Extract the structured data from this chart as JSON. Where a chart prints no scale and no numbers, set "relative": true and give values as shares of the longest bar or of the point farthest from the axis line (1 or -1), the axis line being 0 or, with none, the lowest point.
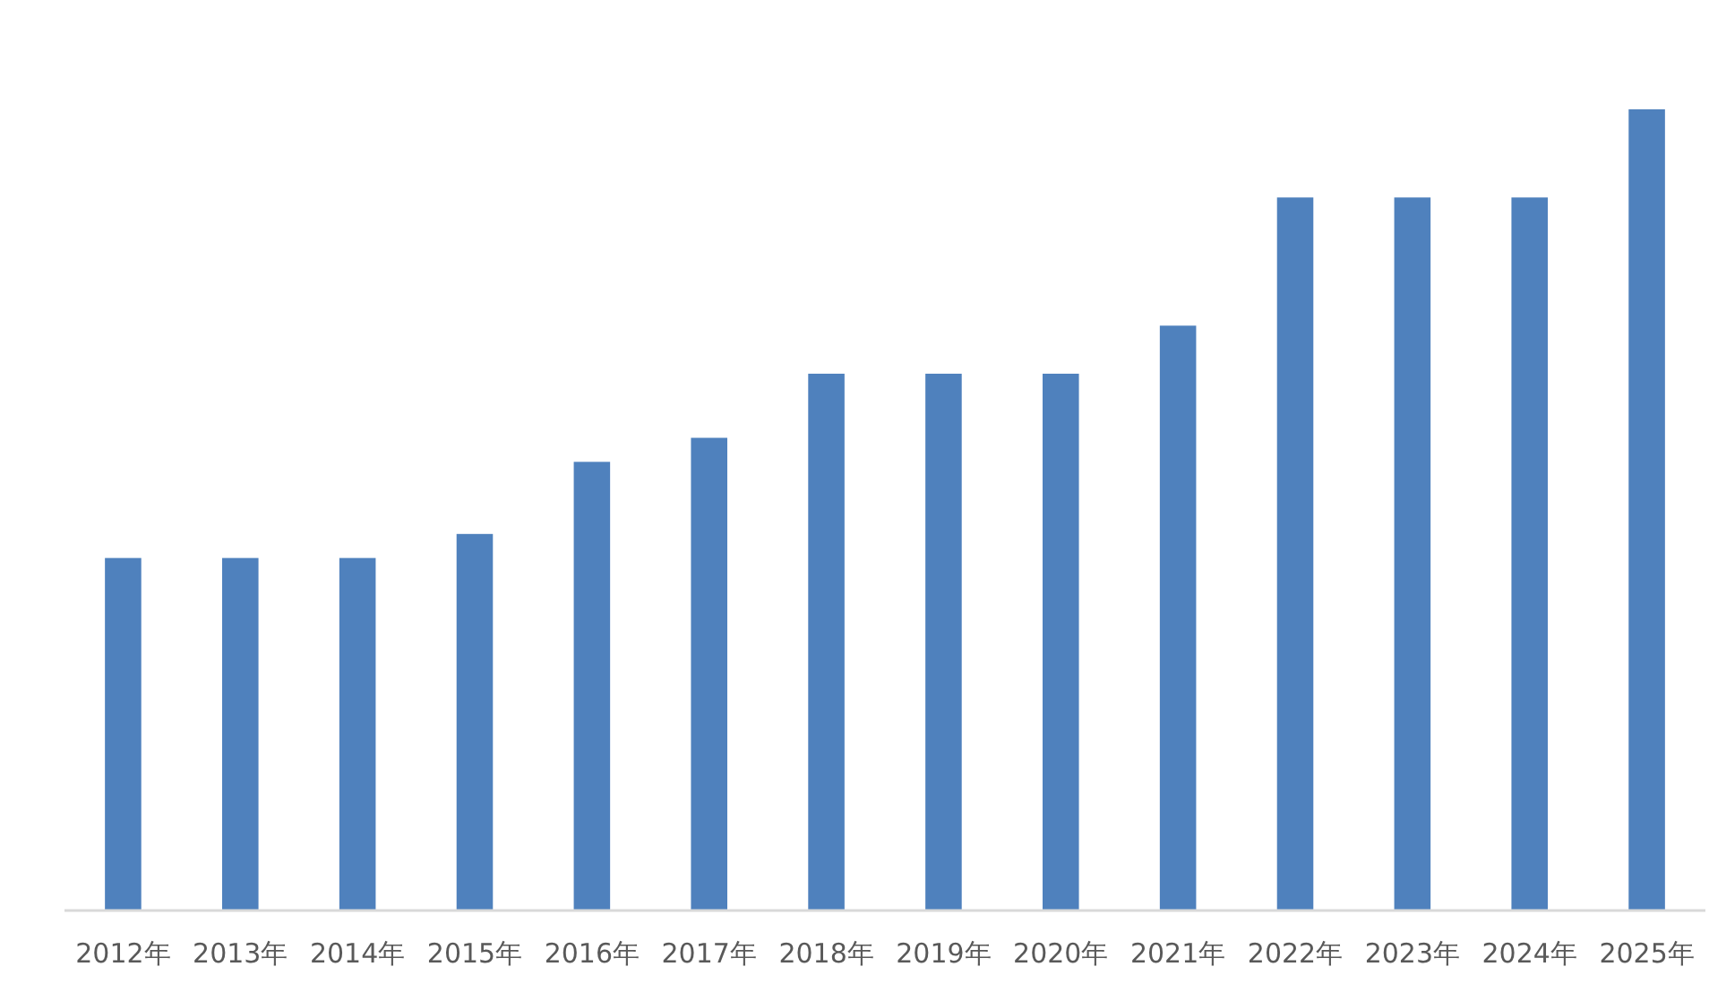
{
  "chart_data": {
    "type": "bar",
    "categories": [
      "2012年",
      "2013年",
      "2014年",
      "2015年",
      "2016年",
      "2017年",
      "2018年",
      "2019年",
      "2020年",
      "2021年",
      "2022年",
      "2023年",
      "2024年",
      "2025年"
    ],
    "values": [
      0.44,
      0.44,
      0.44,
      0.47,
      0.56,
      0.59,
      0.67,
      0.67,
      0.67,
      0.73,
      0.89,
      0.89,
      0.89,
      1
    ],
    "color": "#4f81bd",
    "relative": true
  }
}
